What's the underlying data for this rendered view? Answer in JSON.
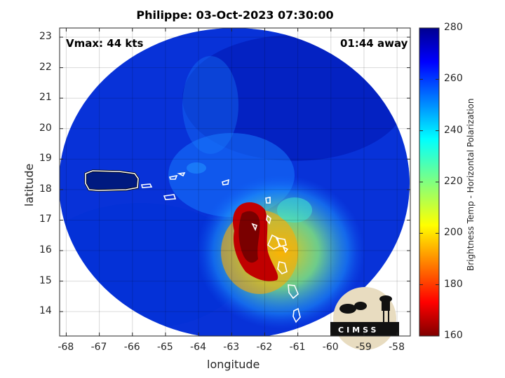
{
  "title": "Philippe: 03-Oct-2023 07:30:00",
  "vmax_label": "Vmax: 44 kts",
  "time_away_label": "01:44 away",
  "x_axis": {
    "label": "longitude",
    "ticks": [
      "-68",
      "-67",
      "-66",
      "-65",
      "-64",
      "-63",
      "-62",
      "-61",
      "-60",
      "-59",
      "-58"
    ],
    "range": [
      -68.2,
      -57.6
    ]
  },
  "y_axis": {
    "label": "latitude",
    "ticks": [
      "23",
      "22",
      "21",
      "20",
      "19",
      "18",
      "17",
      "16",
      "15",
      "14"
    ],
    "range": [
      13.2,
      23.3
    ]
  },
  "colorbar": {
    "label": "Brightness Temp - Horizontal Polarization",
    "ticks": [
      "280",
      "260",
      "240",
      "220",
      "200",
      "180",
      "160"
    ],
    "range": [
      160,
      280
    ],
    "colormap": "jet"
  },
  "logo_text": "CIMSS",
  "colors": {
    "cold_core": "#7a0000",
    "background_field": "#0a3de0",
    "coastline": "#ffffff"
  }
}
